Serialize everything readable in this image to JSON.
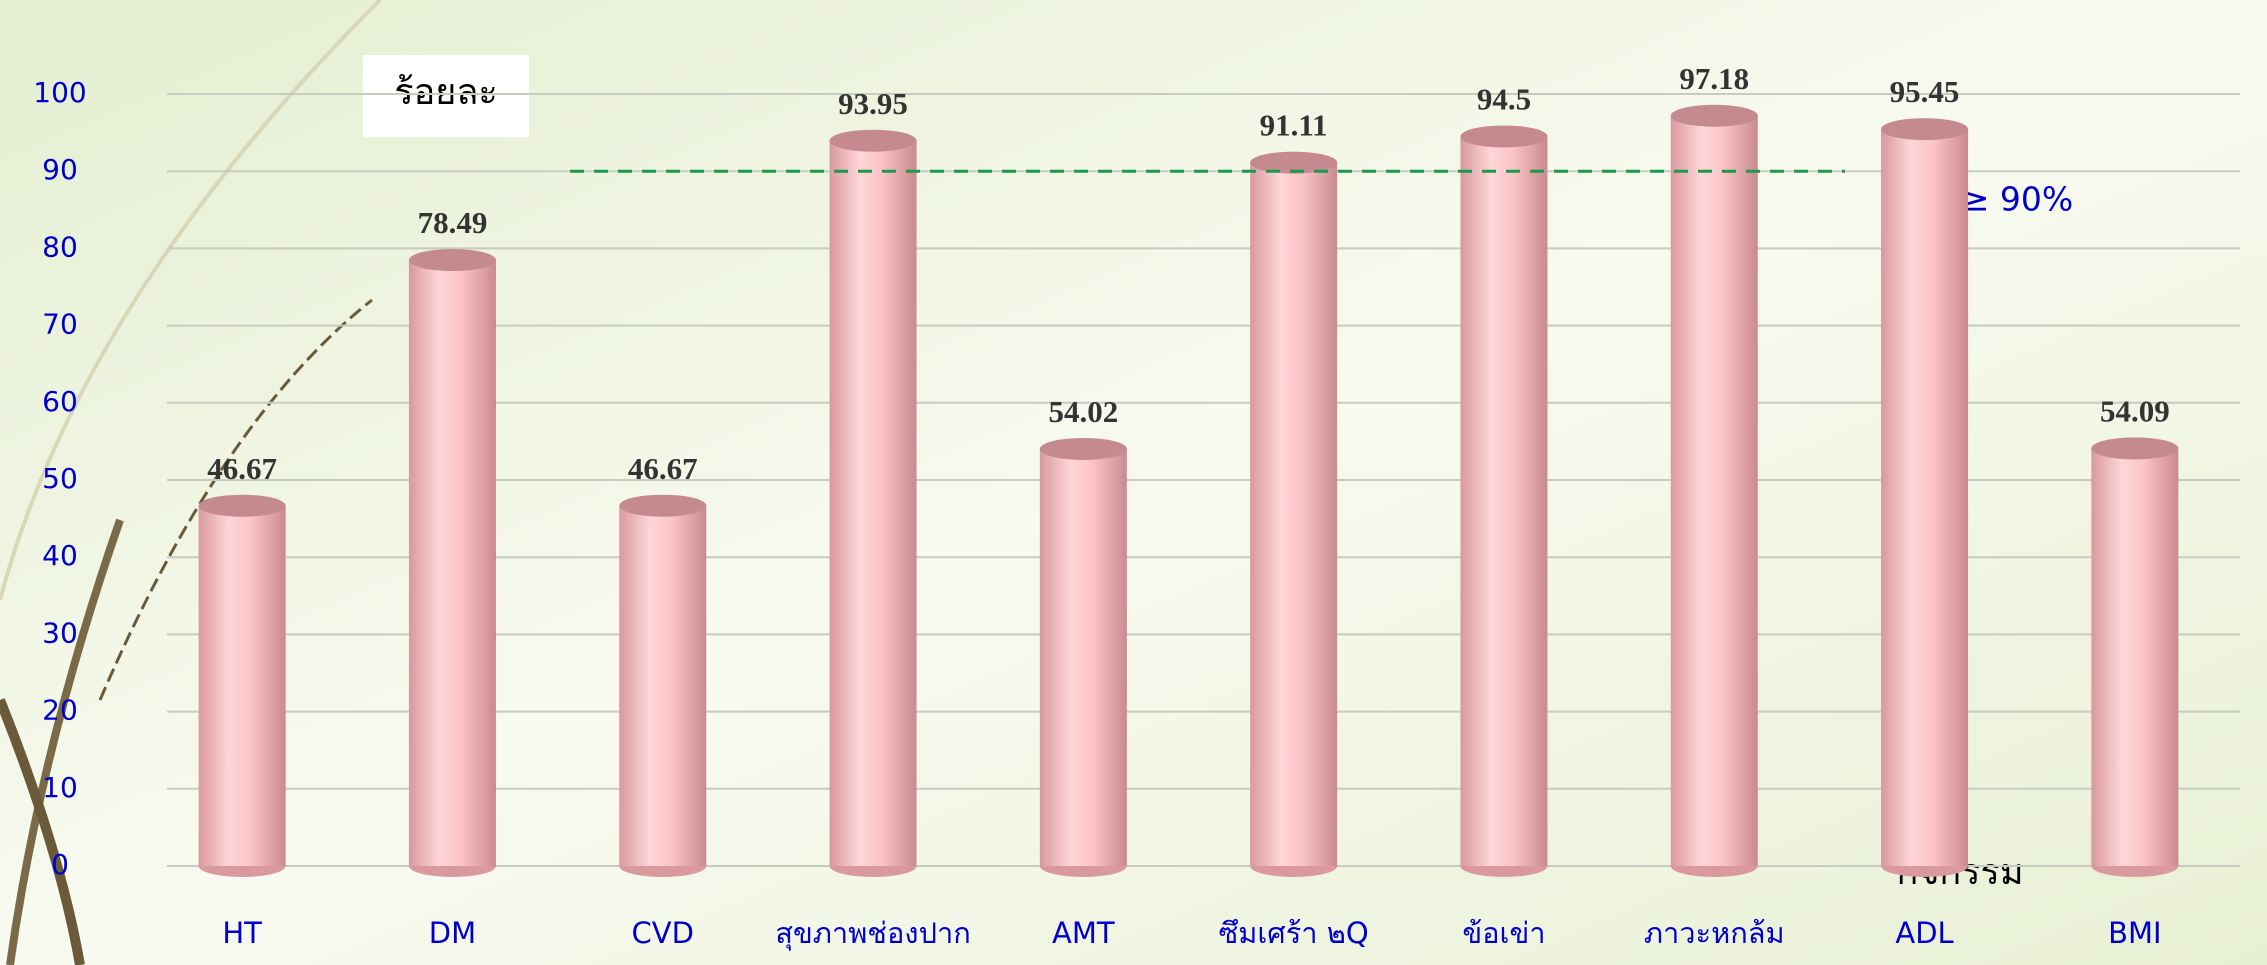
{
  "chart_data": {
    "type": "bar",
    "y_label": "ร้อยละ",
    "x_label": "กิจกรรม",
    "annotation": "KPI ≥ 90%",
    "kpi_line": 90,
    "categories": [
      "HT",
      "DM",
      "CVD",
      "สุขภาพช่องปาก",
      "AMT",
      "ซึมเศร้า ๒Q",
      "ข้อเข่า",
      "ภาวะหกล้ม",
      "ADL",
      "BMI"
    ],
    "values": [
      46.67,
      78.49,
      46.67,
      93.95,
      54.02,
      91.11,
      94.5,
      97.18,
      95.45,
      54.09
    ],
    "color": "#f4b8bc",
    "ylim": [
      0,
      100
    ],
    "yticks": [
      0,
      10,
      20,
      30,
      40,
      50,
      60,
      70,
      80,
      90,
      100
    ],
    "grid": true
  }
}
